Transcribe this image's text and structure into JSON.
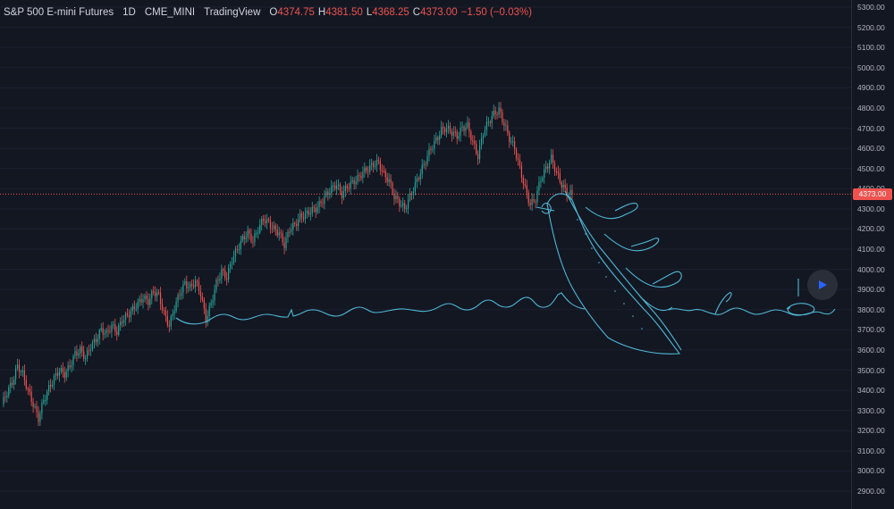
{
  "legend": {
    "symbol": "S&P 500 E-mini Futures",
    "interval": "1D",
    "exchange": "CME_MINI",
    "source": "TradingView",
    "o_label": "O",
    "o": "4374.75",
    "h_label": "H",
    "h": "4381.50",
    "l_label": "L",
    "l": "4368.25",
    "c_label": "C",
    "c": "4373.00",
    "change": "−1.50 (−0.03%)"
  },
  "price_axis": {
    "ticks": [
      "5300.00",
      "5200.00",
      "5100.00",
      "5000.00",
      "4900.00",
      "4800.00",
      "4700.00",
      "4600.00",
      "4500.00",
      "4400.00",
      "4300.00",
      "4200.00",
      "4100.00",
      "4000.00",
      "3900.00",
      "3800.00",
      "3700.00",
      "3600.00",
      "3500.00",
      "3400.00",
      "3300.00",
      "3200.00",
      "3100.00",
      "3000.00",
      "2900.00"
    ],
    "last_price_label": "4373.00"
  },
  "colors": {
    "background": "#131722",
    "up": "#26a69a",
    "down": "#ef5350",
    "drawing": "#4fb8d6",
    "last_price": "#ef5350"
  },
  "play_icon": "play-icon",
  "chart_data": {
    "type": "candlestick",
    "instrument": "S&P 500 E-mini Futures",
    "interval": "1D",
    "y_range": [
      2870,
      5320
    ],
    "last_price": 4373.0,
    "closes": [
      3330,
      3390,
      3440,
      3520,
      3480,
      3400,
      3330,
      3260,
      3350,
      3410,
      3460,
      3500,
      3480,
      3520,
      3580,
      3600,
      3560,
      3620,
      3650,
      3700,
      3680,
      3720,
      3690,
      3750,
      3770,
      3800,
      3830,
      3860,
      3840,
      3890,
      3870,
      3780,
      3720,
      3810,
      3880,
      3930,
      3910,
      3940,
      3880,
      3750,
      3830,
      3930,
      3990,
      3960,
      4050,
      4100,
      4150,
      4180,
      4140,
      4200,
      4250,
      4230,
      4200,
      4180,
      4120,
      4200,
      4220,
      4260,
      4270,
      4290,
      4300,
      4330,
      4370,
      4400,
      4420,
      4370,
      4410,
      4430,
      4450,
      4480,
      4500,
      4520,
      4530,
      4470,
      4440,
      4360,
      4330,
      4300,
      4360,
      4420,
      4480,
      4540,
      4600,
      4640,
      4690,
      4700,
      4680,
      4660,
      4700,
      4710,
      4630,
      4560,
      4680,
      4730,
      4770,
      4790,
      4720,
      4650,
      4600,
      4500,
      4400,
      4320,
      4350,
      4450,
      4500,
      4550,
      4480,
      4420,
      4380,
      4373
    ]
  }
}
